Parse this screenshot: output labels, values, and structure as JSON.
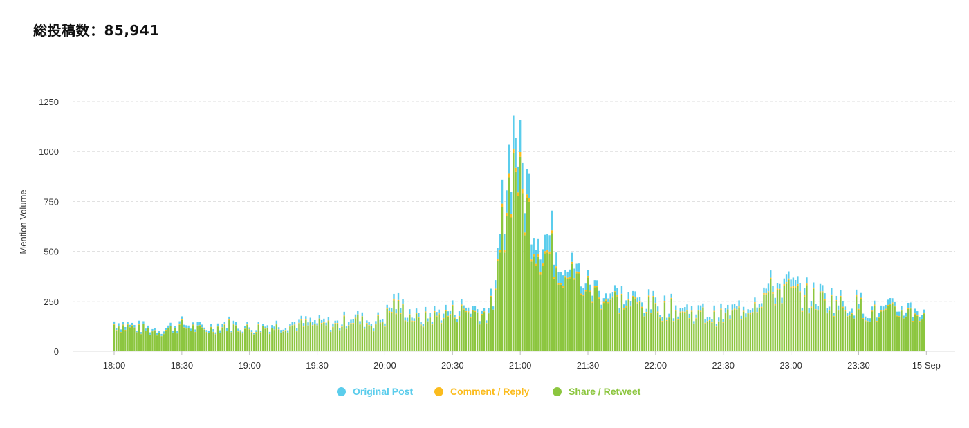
{
  "header": {
    "total_label": "総投稿数：85,941"
  },
  "colors": {
    "original": "#5bcdec",
    "comment": "#fbbc1e",
    "share": "#8cc63f",
    "grid": "#dddddd"
  },
  "chart_data": {
    "type": "bar",
    "stacked": true,
    "ylabel": "Mention Volume",
    "ylim": [
      0,
      1250
    ],
    "yticks": [
      0,
      250,
      500,
      750,
      1000,
      1250
    ],
    "x_range_minutes": [
      0,
      365
    ],
    "xticks": [
      {
        "label": "18:00",
        "minute": 0
      },
      {
        "label": "18:30",
        "minute": 30
      },
      {
        "label": "19:00",
        "minute": 60
      },
      {
        "label": "19:30",
        "minute": 90
      },
      {
        "label": "20:00",
        "minute": 120
      },
      {
        "label": "20:30",
        "minute": 150
      },
      {
        "label": "21:00",
        "minute": 180
      },
      {
        "label": "21:30",
        "minute": 210
      },
      {
        "label": "22:00",
        "minute": 240
      },
      {
        "label": "22:30",
        "minute": 270
      },
      {
        "label": "23:00",
        "minute": 300
      },
      {
        "label": "23:30",
        "minute": 330
      },
      {
        "label": "15 Sep",
        "minute": 360
      }
    ],
    "grid": "horizontal-dashed",
    "legend_position": "bottom-center",
    "series": [
      {
        "name": "Original Post",
        "color": "#5bcdec"
      },
      {
        "name": "Comment / Reply",
        "color": "#fbbc1e"
      },
      {
        "name": "Share / Retweet",
        "color": "#8cc63f"
      }
    ],
    "keypoints": [
      [
        0,
        150
      ],
      [
        10,
        125
      ],
      [
        20,
        110
      ],
      [
        30,
        140
      ],
      [
        40,
        115
      ],
      [
        50,
        145
      ],
      [
        60,
        120
      ],
      [
        70,
        135
      ],
      [
        80,
        145
      ],
      [
        90,
        145
      ],
      [
        100,
        140
      ],
      [
        105,
        185
      ],
      [
        110,
        160
      ],
      [
        115,
        150
      ],
      [
        120,
        175
      ],
      [
        124,
        255
      ],
      [
        130,
        210
      ],
      [
        135,
        165
      ],
      [
        140,
        185
      ],
      [
        145,
        200
      ],
      [
        150,
        210
      ],
      [
        155,
        225
      ],
      [
        160,
        215
      ],
      [
        165,
        200
      ],
      [
        169,
        300
      ],
      [
        172,
        700
      ],
      [
        174,
        900
      ],
      [
        176,
        1050
      ],
      [
        178,
        1150
      ],
      [
        180,
        930
      ],
      [
        182,
        860
      ],
      [
        184,
        800
      ],
      [
        186,
        660
      ],
      [
        190,
        590
      ],
      [
        195,
        560
      ],
      [
        200,
        450
      ],
      [
        205,
        400
      ],
      [
        210,
        340
      ],
      [
        215,
        310
      ],
      [
        220,
        290
      ],
      [
        225,
        280
      ],
      [
        230,
        260
      ],
      [
        235,
        250
      ],
      [
        240,
        240
      ],
      [
        245,
        230
      ],
      [
        250,
        220
      ],
      [
        255,
        210
      ],
      [
        260,
        200
      ],
      [
        265,
        185
      ],
      [
        270,
        190
      ],
      [
        275,
        210
      ],
      [
        280,
        235
      ],
      [
        285,
        280
      ],
      [
        290,
        320
      ],
      [
        295,
        340
      ],
      [
        300,
        330
      ],
      [
        305,
        300
      ],
      [
        310,
        280
      ],
      [
        315,
        285
      ],
      [
        320,
        260
      ],
      [
        325,
        240
      ],
      [
        330,
        250
      ],
      [
        335,
        210
      ],
      [
        340,
        200
      ],
      [
        345,
        215
      ],
      [
        350,
        220
      ],
      [
        354,
        215
      ],
      [
        358,
        205
      ]
    ]
  },
  "legend": {
    "items": [
      {
        "label": "Original Post",
        "color": "#5bcdec"
      },
      {
        "label": "Comment / Reply",
        "color": "#fbbc1e"
      },
      {
        "label": "Share / Retweet",
        "color": "#8cc63f"
      }
    ]
  }
}
